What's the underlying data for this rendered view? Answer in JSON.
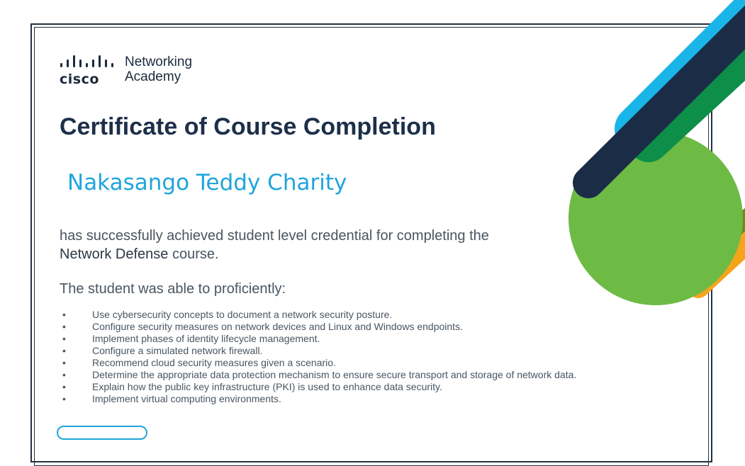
{
  "brand": {
    "wordmark": "cisco",
    "line1": "Networking",
    "line2": "Academy"
  },
  "certificate": {
    "title": "Certificate of Course Completion",
    "recipient": "Nakasango Teddy Charity",
    "statement_before": "has successfully achieved student level credential for completing the ",
    "course_name": "Network Defense",
    "statement_after": " course.",
    "lead": "The student was able to proficiently:"
  },
  "skills": [
    "Use cybersecurity concepts to document a network security posture.",
    "Configure security measures on network devices and Linux and Windows endpoints.",
    "Implement phases of identity lifecycle management.",
    "Configure a simulated network firewall.",
    "Recommend cloud security measures given a scenario.",
    "Determine the appropriate data protection mechanism to ensure secure transport and storage of network data.",
    "Explain how the public key infrastructure (PKI) is used to enhance data security.",
    "Implement virtual computing environments."
  ],
  "colors": {
    "navy": "#1d2f49",
    "cyan": "#20a5dc",
    "green": "#6dba45",
    "dark_green": "#0d8e49",
    "olive": "#6d8a1f",
    "orange": "#f4a51c",
    "sky": "#19b5e8"
  }
}
